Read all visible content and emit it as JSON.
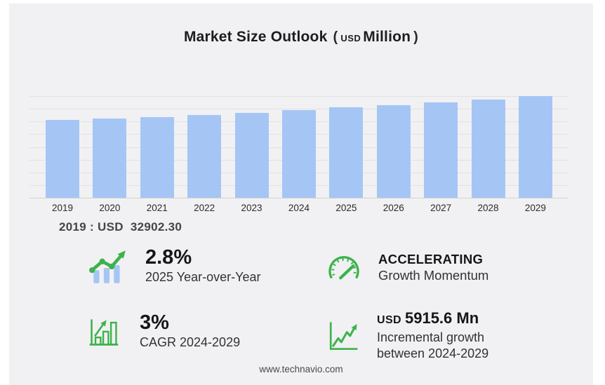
{
  "header": {
    "title": "Market Size Outlook",
    "paren_open": "(",
    "currency": "USD",
    "unit": "Million",
    "paren_close": ")"
  },
  "chart_data": {
    "type": "bar",
    "title": "Market Size Outlook (USD Million)",
    "categories": [
      "2019",
      "2020",
      "2021",
      "2022",
      "2023",
      "2024",
      "2025",
      "2026",
      "2027",
      "2028",
      "2029"
    ],
    "values": [
      32902.3,
      33500,
      34100,
      35000,
      36000,
      37140,
      38180,
      39290,
      40450,
      41700,
      43058
    ],
    "xlabel": "",
    "ylabel": "",
    "ylim": [
      0,
      43058
    ],
    "grid": true,
    "gridline_count": 9,
    "legend": false,
    "bar_color": "#a5c6f5"
  },
  "annotation": {
    "text": "2019 : USD  32902.30"
  },
  "stats": {
    "yoy": {
      "icon": "trend-bars-icon",
      "value": "2.8%",
      "label": "2025 Year-over-Year"
    },
    "momentum": {
      "icon": "gauge-icon",
      "value": "ACCELERATING",
      "label": "Growth Momentum"
    },
    "cagr": {
      "icon": "bar-growth-icon",
      "value": "3%",
      "label": "CAGR 2024-2029"
    },
    "incremental": {
      "icon": "line-chart-icon",
      "currency": "USD",
      "value": "5915.6 Mn",
      "label_line1": "Incremental growth",
      "label_line2": "between 2024-2029"
    }
  },
  "footer": {
    "url": "www.technavio.com"
  },
  "colors": {
    "card_bg": "#f1f1f3",
    "bar": "#a5c6f5",
    "grid": "#e1e1e4",
    "accent_green": "#3cb34b",
    "text_dark": "#1d1d1d"
  }
}
